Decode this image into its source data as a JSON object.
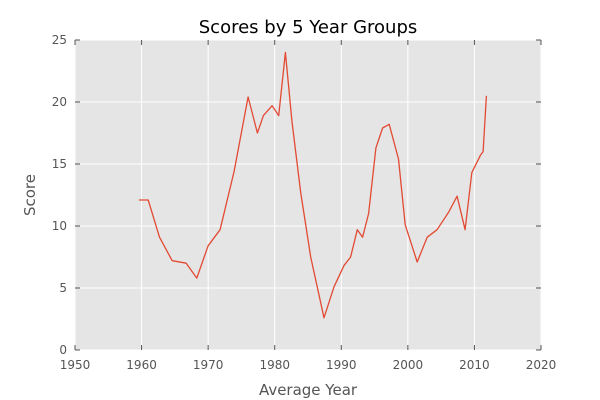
{
  "chart_data": {
    "type": "line",
    "title": "Scores by 5 Year Groups",
    "xlabel": "Average Year",
    "ylabel": "Score",
    "xlim": [
      1950,
      2020
    ],
    "ylim": [
      0,
      25
    ],
    "xticks": [
      1950,
      1960,
      1970,
      1980,
      1990,
      2000,
      2010,
      2020
    ],
    "yticks": [
      0,
      5,
      10,
      15,
      20,
      25
    ],
    "grid": true,
    "series": [
      {
        "color": "#e24a33",
        "x": [
          1959.6,
          1961.0,
          1962.7,
          1964.6,
          1966.7,
          1968.3,
          1970.0,
          1971.8,
          1973.9,
          1976.0,
          1977.4,
          1978.3,
          1979.6,
          1980.6,
          1981.6,
          1982.6,
          1983.9,
          1985.4,
          1987.4,
          1988.9,
          1990.4,
          1991.4,
          1992.4,
          1993.2,
          1994.1,
          1995.2,
          1996.2,
          1997.2,
          1998.6,
          1999.6,
          2001.4,
          2002.9,
          2004.4,
          2006.1,
          2007.4,
          2008.6,
          2009.6,
          2010.9,
          2011.3,
          2011.8
        ],
        "y": [
          12.1,
          12.1,
          9.1,
          7.2,
          7.0,
          5.8,
          8.4,
          9.7,
          14.4,
          20.4,
          17.5,
          18.9,
          19.7,
          18.9,
          24.0,
          18.4,
          12.7,
          7.5,
          2.6,
          5.1,
          6.8,
          7.5,
          9.7,
          9.1,
          11.0,
          16.3,
          17.9,
          18.2,
          15.4,
          10.1,
          7.1,
          9.1,
          9.7,
          11.1,
          12.4,
          9.7,
          14.3,
          15.7,
          16.0,
          20.5
        ]
      }
    ]
  }
}
